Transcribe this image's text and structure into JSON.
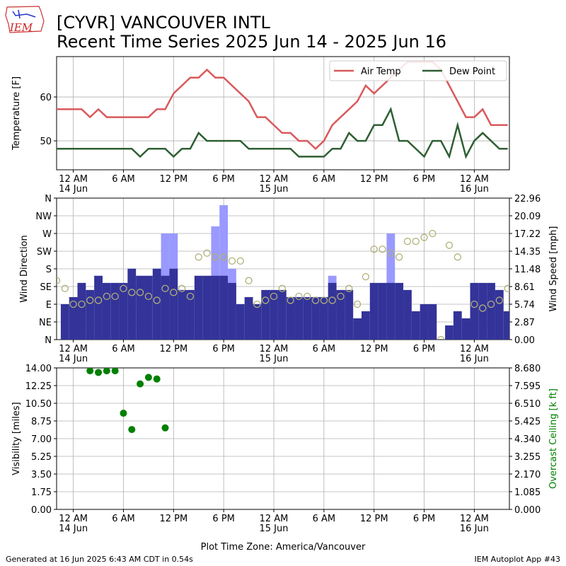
{
  "logo": "IEM",
  "title": [
    "[CYVR] VANCOUVER INTL",
    "Recent Time Series 2025 Jun 14 - 2025 Jun 16"
  ],
  "xlabel": "Plot Time Zone: America/Vancouver",
  "footer": {
    "left": "Generated at 16 Jun 2025 6:43 AM CDT in 0.54s",
    "right": "IEM Autoplot App #43"
  },
  "chart_data": [
    {
      "type": "line",
      "ylabel": "Temperature [F]",
      "grid": true,
      "legend": "upper right",
      "xlim": [
        -2,
        52.2
      ],
      "xticks": [
        {
          "value": 0,
          "label": "12 AM\n14 Jun"
        },
        {
          "value": 6,
          "label": "6 AM"
        },
        {
          "value": 12,
          "label": "12 PM"
        },
        {
          "value": 18,
          "label": "6 PM"
        },
        {
          "value": 24,
          "label": "12 AM\n15 Jun"
        },
        {
          "value": 30,
          "label": "6 AM"
        },
        {
          "value": 36,
          "label": "12 PM"
        },
        {
          "value": 42,
          "label": "6 PM"
        },
        {
          "value": 48,
          "label": "12 AM\n16 Jun"
        }
      ],
      "ylim": [
        43.4,
        69.2
      ],
      "yticks": [
        50,
        60
      ],
      "x": [
        -2,
        -1,
        0,
        1,
        2,
        3,
        4,
        5,
        6,
        7,
        8,
        9,
        10,
        11,
        12,
        13,
        14,
        15,
        16,
        17,
        18,
        19,
        20,
        21,
        22,
        23,
        24,
        25,
        26,
        27,
        28,
        29,
        30,
        31,
        32,
        33,
        34,
        35,
        36,
        37,
        38,
        39,
        40,
        41,
        42,
        43,
        44,
        45,
        46,
        47,
        48,
        49,
        50,
        51,
        52
      ],
      "series": [
        {
          "name": "Air Temp",
          "color": "#d9595c",
          "values": [
            57.2,
            57.2,
            57.2,
            57.2,
            55.4,
            57.2,
            55.4,
            55.4,
            55.4,
            55.4,
            55.4,
            55.4,
            57.2,
            57.2,
            60.8,
            62.6,
            64.4,
            64.4,
            66.2,
            64.4,
            64.4,
            62.6,
            60.8,
            59,
            55.4,
            55.4,
            53.6,
            51.8,
            51.8,
            50,
            50,
            48.2,
            50,
            53.6,
            55.4,
            57.2,
            59,
            62.6,
            60.8,
            62.6,
            64.4,
            66.2,
            68,
            68,
            68,
            68,
            66.2,
            62.6,
            59,
            55.4,
            55.4,
            57.2,
            53.6,
            53.6,
            53.6
          ]
        },
        {
          "name": "Dew Point",
          "color": "#2f5f33",
          "values": [
            48.2,
            48.2,
            48.2,
            48.2,
            48.2,
            48.2,
            48.2,
            48.2,
            48.2,
            48.2,
            46.4,
            48.2,
            48.2,
            48.2,
            46.4,
            48.2,
            48.2,
            51.8,
            50,
            50,
            50,
            50,
            50,
            48.2,
            48.2,
            48.2,
            48.2,
            48.2,
            48.2,
            46.4,
            46.4,
            46.4,
            46.4,
            48.2,
            48.2,
            51.8,
            50,
            50,
            53.6,
            53.6,
            57.2,
            50,
            50,
            48.2,
            46.4,
            50,
            50,
            46.4,
            53.6,
            46.4,
            50,
            51.8,
            50,
            48.2,
            48.2
          ]
        }
      ]
    },
    {
      "type": "bar",
      "ylabel": "Wind Direction",
      "y2label": "Wind Speed [mph]",
      "grid": true,
      "xlim": [
        -2,
        52.2
      ],
      "xticks": [
        {
          "value": 0,
          "label": "12 AM\n14 Jun"
        },
        {
          "value": 6,
          "label": "6 AM"
        },
        {
          "value": 12,
          "label": "12 PM"
        },
        {
          "value": 18,
          "label": "6 PM"
        },
        {
          "value": 24,
          "label": "12 AM\n15 Jun"
        },
        {
          "value": 30,
          "label": "6 AM"
        },
        {
          "value": 36,
          "label": "12 PM"
        },
        {
          "value": 42,
          "label": "6 PM"
        },
        {
          "value": 48,
          "label": "12 AM\n16 Jun"
        }
      ],
      "ylim": [
        0,
        360
      ],
      "yticks": [
        {
          "value": 0,
          "label": "N"
        },
        {
          "value": 45,
          "label": "NE"
        },
        {
          "value": 90,
          "label": "E"
        },
        {
          "value": 135,
          "label": "SE"
        },
        {
          "value": 180,
          "label": "S"
        },
        {
          "value": 225,
          "label": "SW"
        },
        {
          "value": 270,
          "label": "W"
        },
        {
          "value": 315,
          "label": "NW"
        },
        {
          "value": 360,
          "label": "N"
        }
      ],
      "y2lim": [
        0,
        22.96
      ],
      "y2ticks": [
        {
          "value": 0,
          "label": "0.00"
        },
        2.87,
        5.74,
        8.61,
        11.48,
        14.35,
        17.22,
        20.09,
        22.96
      ],
      "x": [
        -2,
        -1,
        0,
        1,
        2,
        3,
        4,
        5,
        6,
        7,
        8,
        9,
        10,
        11,
        12,
        13,
        14,
        15,
        16,
        17,
        18,
        19,
        20,
        21,
        22,
        23,
        24,
        25,
        26,
        27,
        28,
        29,
        30,
        31,
        32,
        33,
        34,
        35,
        36,
        37,
        38,
        39,
        40,
        41,
        42,
        43,
        44,
        45,
        46,
        47,
        48,
        49,
        50,
        51,
        52
      ],
      "series": [
        {
          "type": "bar",
          "axis": "y2",
          "color": "#9999ff",
          "values": [
            null,
            null,
            null,
            null,
            null,
            null,
            null,
            null,
            null,
            null,
            null,
            null,
            null,
            17.22,
            17.22,
            null,
            null,
            null,
            null,
            18.37,
            21.81,
            11.51,
            null,
            null,
            null,
            null,
            null,
            null,
            null,
            null,
            null,
            null,
            null,
            10.36,
            null,
            null,
            null,
            null,
            null,
            null,
            17.22,
            null,
            null,
            null,
            null,
            null,
            null,
            null,
            null,
            null,
            null,
            null,
            null,
            null,
            null
          ]
        },
        {
          "type": "bar",
          "axis": "y2",
          "color": "#333399",
          "values": [
            null,
            5.75,
            6.9,
            9.2,
            8.05,
            10.36,
            9.2,
            9.2,
            9.2,
            11.51,
            10.36,
            10.36,
            11.51,
            10.36,
            11.51,
            8.05,
            8.05,
            10.36,
            10.36,
            10.36,
            10.36,
            9.2,
            5.75,
            6.9,
            5.75,
            8.05,
            8.05,
            8.05,
            6.9,
            6.9,
            6.9,
            6.9,
            6.9,
            9.2,
            8.05,
            8.05,
            3.45,
            4.6,
            9.2,
            9.2,
            9.2,
            9.2,
            8.05,
            4.6,
            5.75,
            5.75,
            0,
            2.3,
            4.6,
            3.45,
            9.2,
            9.2,
            9.2,
            8.05,
            4.6
          ]
        },
        {
          "type": "scatter",
          "marker": "hollow",
          "color": "#b0b078",
          "values": [
            150,
            130,
            90,
            90,
            100,
            100,
            110,
            110,
            130,
            120,
            120,
            110,
            100,
            130,
            120,
            130,
            110,
            210,
            220,
            210,
            210,
            200,
            200,
            150,
            90,
            100,
            110,
            130,
            100,
            110,
            110,
            100,
            100,
            100,
            110,
            130,
            90,
            160,
            230,
            230,
            220,
            210,
            250,
            250,
            260,
            270,
            0,
            240,
            210,
            null,
            90,
            80,
            90,
            100,
            130
          ]
        }
      ]
    },
    {
      "type": "scatter",
      "ylabel": "Visibility [miles]",
      "y2label": "Overcast Ceiling [k ft]",
      "y2label_color": "#008000",
      "grid": true,
      "xlim": [
        -2,
        52.2
      ],
      "xticks": [
        {
          "value": 0,
          "label": "12 AM\n14 Jun"
        },
        {
          "value": 6,
          "label": "6 AM"
        },
        {
          "value": 12,
          "label": "12 PM"
        },
        {
          "value": 18,
          "label": "6 PM"
        },
        {
          "value": 24,
          "label": "12 AM\n15 Jun"
        },
        {
          "value": 30,
          "label": "6 AM"
        },
        {
          "value": 36,
          "label": "12 PM"
        },
        {
          "value": 42,
          "label": "6 PM"
        },
        {
          "value": 48,
          "label": "12 AM\n16 Jun"
        }
      ],
      "ylim": [
        0,
        14
      ],
      "yticks": [
        {
          "value": 0,
          "label": "0.00"
        },
        1.75,
        {
          "value": 3.5,
          "label": "3.50"
        },
        5.25,
        {
          "value": 7,
          "label": "7.00"
        },
        8.75,
        {
          "value": 10.5,
          "label": "10.50"
        },
        12.25,
        {
          "value": 14,
          "label": "14.00"
        }
      ],
      "y2lim": [
        0,
        8.68
      ],
      "y2ticks": [
        {
          "value": 0,
          "label": "0.000"
        },
        1.085,
        {
          "value": 2.17,
          "label": "2.170"
        },
        3.255,
        {
          "value": 4.34,
          "label": "4.340"
        },
        5.425,
        {
          "value": 6.51,
          "label": "6.510"
        },
        7.595,
        {
          "value": 8.68,
          "label": "8.680"
        }
      ],
      "series": [
        {
          "type": "scatter",
          "axis": "y2",
          "color": "#008000",
          "x": [
            2,
            3,
            4,
            5,
            6,
            7,
            8,
            9,
            10,
            11
          ],
          "values": [
            8.5,
            8.4,
            8.5,
            8.5,
            5.9,
            4.9,
            7.7,
            8.1,
            8.0,
            5.0
          ]
        }
      ]
    }
  ]
}
